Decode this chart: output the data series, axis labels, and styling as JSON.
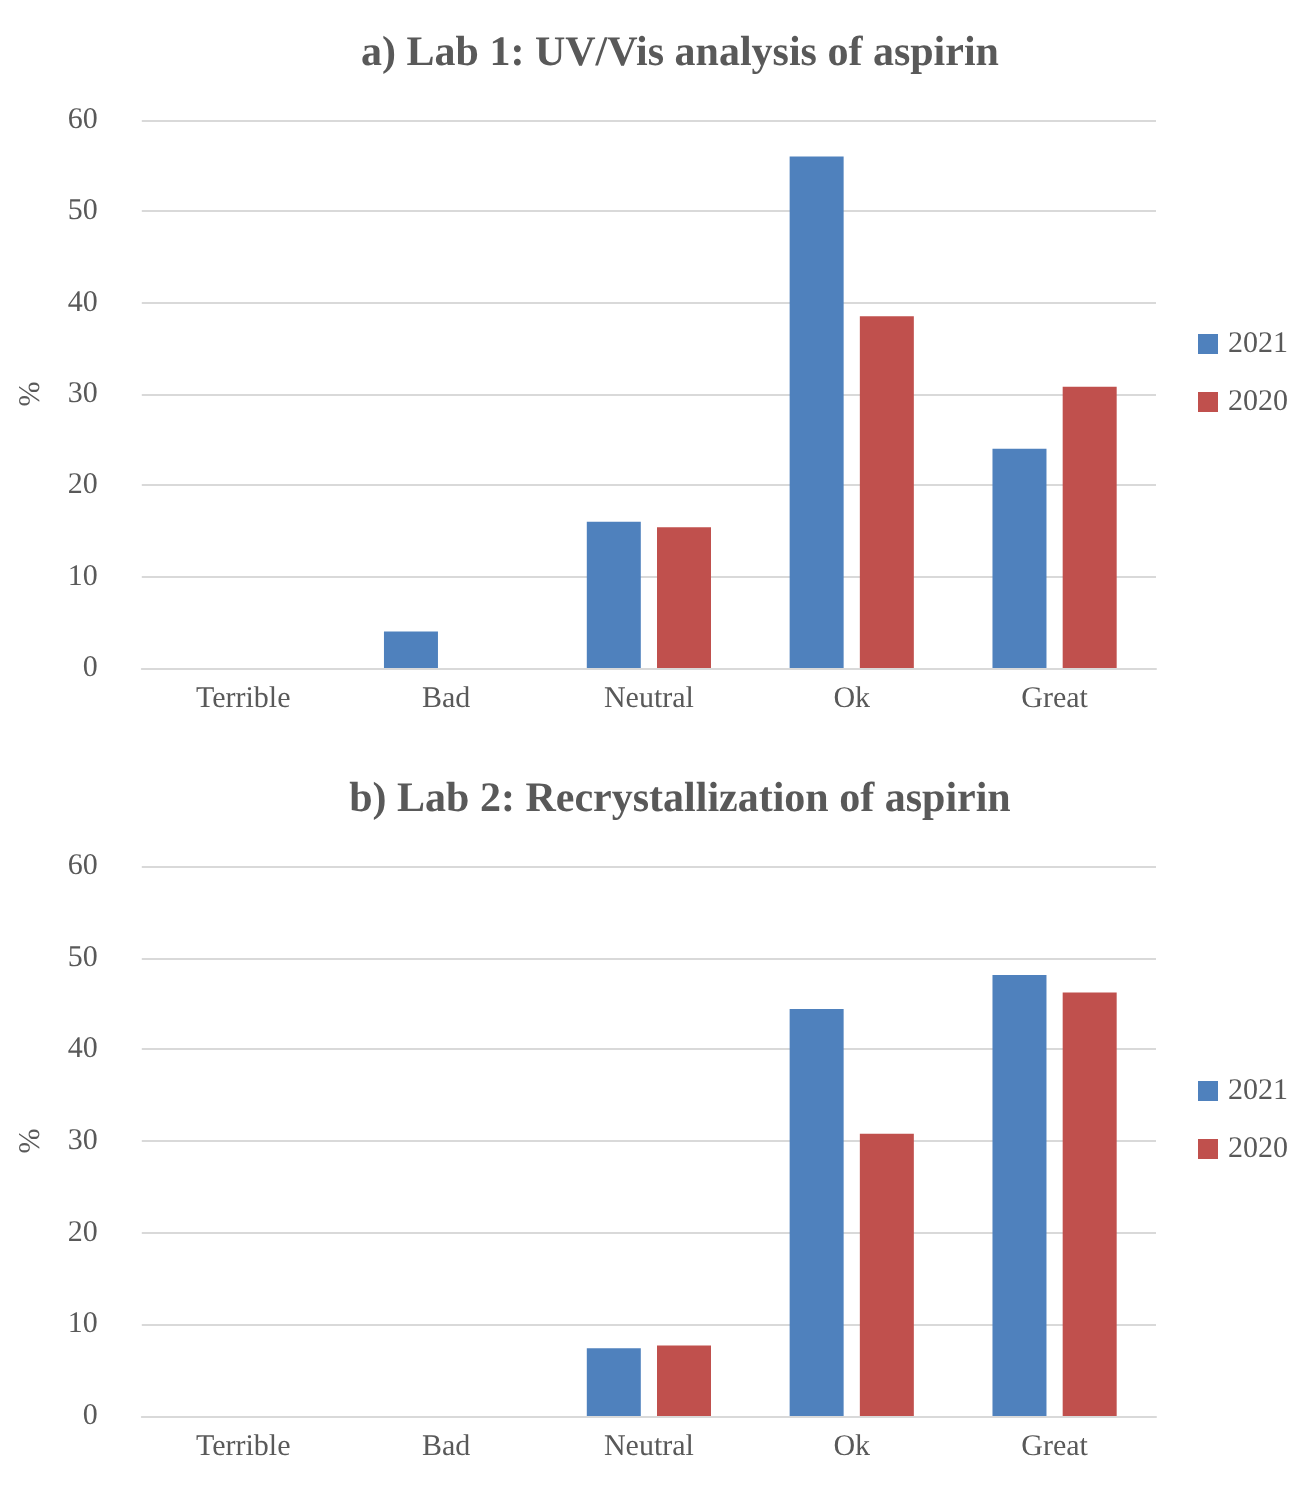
{
  "chart_data": [
    {
      "type": "bar",
      "title": "a) Lab 1: UV/Vis analysis of aspirin",
      "ylabel": "%",
      "categories": [
        "Terrible",
        "Bad",
        "Neutral",
        "Ok",
        "Great"
      ],
      "series": [
        {
          "name": "2021",
          "color": "#4f81bd",
          "values": [
            0,
            4,
            16,
            56,
            24
          ]
        },
        {
          "name": "2020",
          "color": "#c0504d",
          "values": [
            0,
            0,
            15.4,
            38.5,
            30.8
          ]
        }
      ],
      "ylim": [
        0,
        60
      ],
      "yticks": [
        0,
        10,
        20,
        30,
        40,
        50,
        60
      ],
      "grid": "y",
      "legend": "right"
    },
    {
      "type": "bar",
      "title": "b) Lab 2: Recrystallization of aspirin",
      "ylabel": "%",
      "categories": [
        "Terrible",
        "Bad",
        "Neutral",
        "Ok",
        "Great"
      ],
      "series": [
        {
          "name": "2021",
          "color": "#4f81bd",
          "values": [
            0,
            0,
            7.4,
            44.4,
            48.1
          ]
        },
        {
          "name": "2020",
          "color": "#c0504d",
          "values": [
            0,
            0,
            7.7,
            30.8,
            46.2
          ]
        }
      ],
      "ylim": [
        0,
        60
      ],
      "yticks": [
        0,
        10,
        20,
        30,
        40,
        50,
        60
      ],
      "grid": "y",
      "legend": "right"
    }
  ]
}
